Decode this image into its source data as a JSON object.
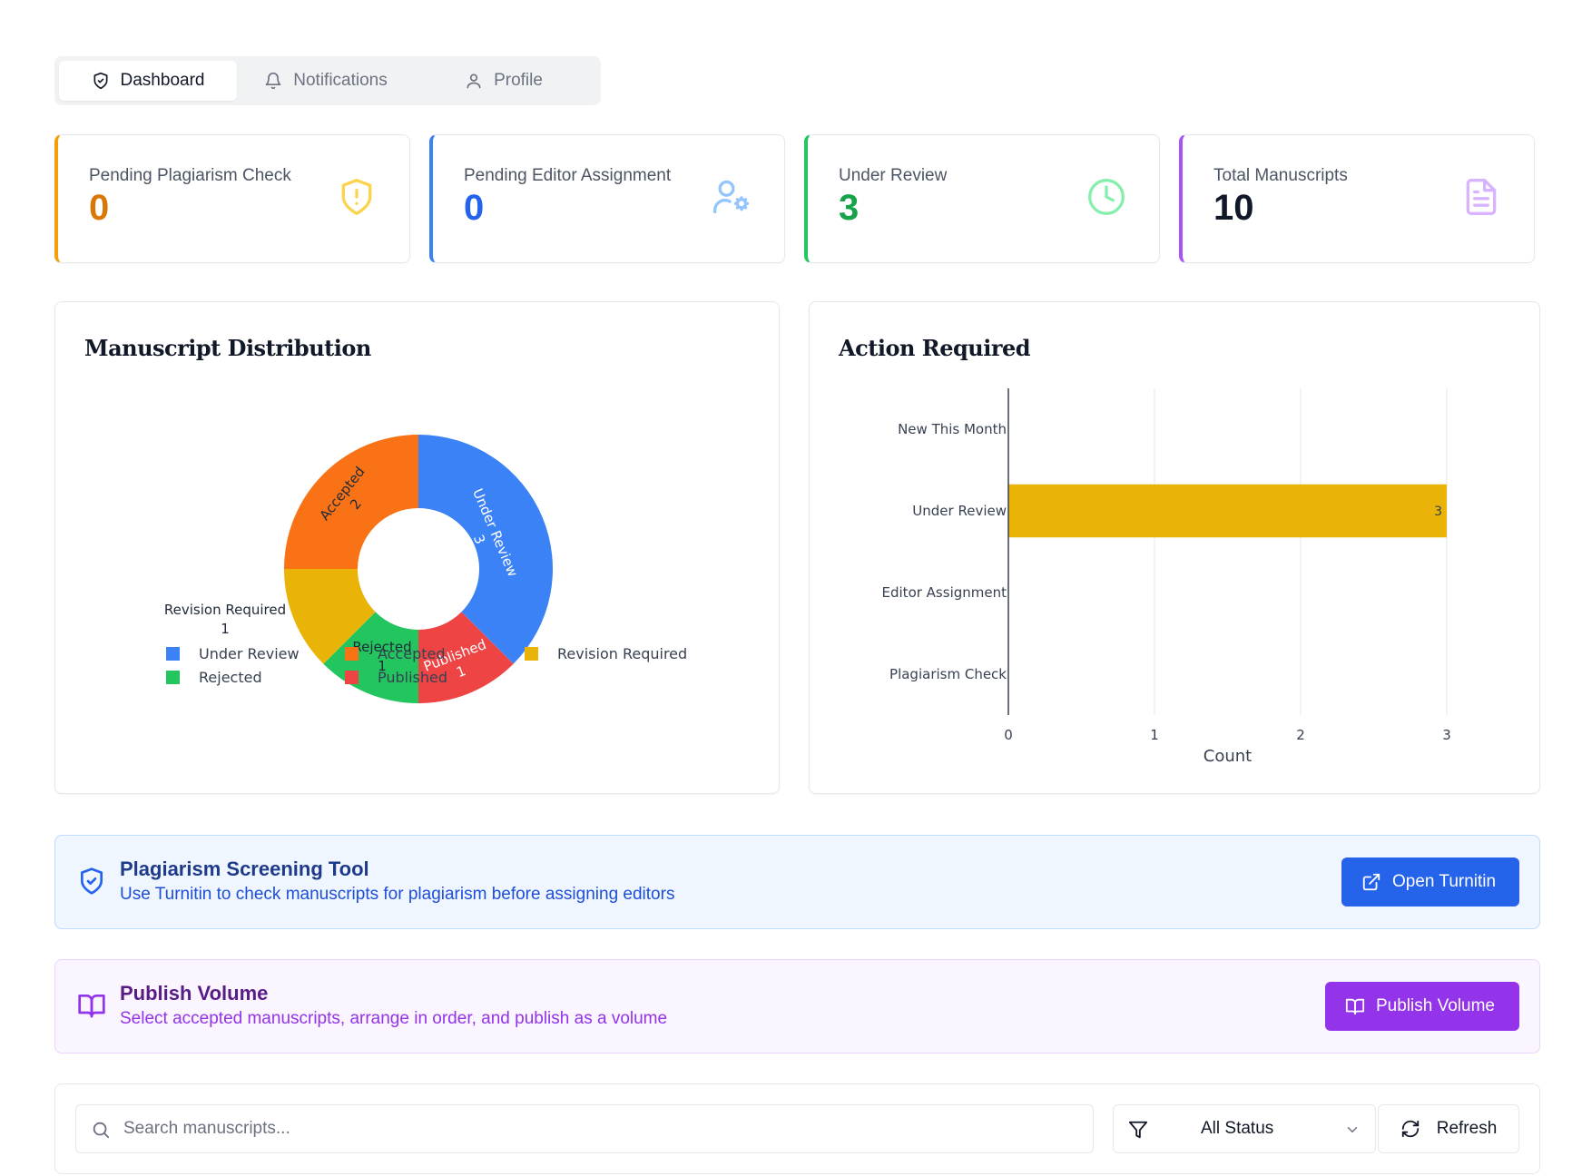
{
  "tabs": [
    {
      "label": "Dashboard",
      "icon": "shield-check-icon",
      "active": true
    },
    {
      "label": "Notifications",
      "icon": "bell-icon",
      "active": false
    },
    {
      "label": "Profile",
      "icon": "user-icon",
      "active": false
    }
  ],
  "stats": [
    {
      "label": "Pending Plagiarism Check",
      "value": "0",
      "color": "#d97706",
      "icon": "shield-alert-icon"
    },
    {
      "label": "Pending Editor Assignment",
      "value": "0",
      "color": "#2563eb",
      "icon": "user-cog-icon"
    },
    {
      "label": "Under Review",
      "value": "3",
      "color": "#16a34a",
      "icon": "clock-icon"
    },
    {
      "label": "Total Manuscripts",
      "value": "10",
      "color": "#9333ea",
      "icon": "file-text-icon"
    }
  ],
  "distribution": {
    "title": "Manuscript Distribution"
  },
  "action": {
    "title": "Action Required"
  },
  "chart_data": [
    {
      "type": "pie",
      "title": "Manuscript Distribution",
      "hole": true,
      "labels": [
        "Under Review",
        "Published",
        "Rejected",
        "Revision Required",
        "Accepted"
      ],
      "values": [
        3,
        1,
        1,
        1,
        2
      ],
      "colors": [
        "#3b82f6",
        "#ef4444",
        "#22c55e",
        "#eab308",
        "#f97316"
      ],
      "legend": [
        "Under Review",
        "Accepted",
        "Revision Required",
        "Rejected",
        "Published"
      ],
      "legend_colors": [
        "#3b82f6",
        "#f97316",
        "#eab308",
        "#22c55e",
        "#ef4444"
      ],
      "legend_position": "bottom"
    },
    {
      "type": "bar",
      "orientation": "horizontal",
      "title": "Action Required",
      "categories": [
        "New This Month",
        "Under Review",
        "Editor Assignment",
        "Plagiarism Check"
      ],
      "values": [
        0,
        3,
        0,
        0
      ],
      "data_labels": [
        "",
        "3",
        "",
        ""
      ],
      "xlabel": "Count",
      "xlim": [
        0,
        3
      ],
      "xticks": [
        "0",
        "1",
        "2",
        "3"
      ],
      "bar_color": "#eab308",
      "grid": true
    }
  ],
  "plagiarism": {
    "title": "Plagiarism Screening Tool",
    "description": "Use Turnitin to check manuscripts for plagiarism before assigning editors",
    "button": "Open Turnitin"
  },
  "publish": {
    "title": "Publish Volume",
    "description": "Select accepted manuscripts, arrange in order, and publish as a volume",
    "button": "Publish Volume"
  },
  "filters": {
    "search_placeholder": "Search manuscripts...",
    "search_value": "",
    "status": "All Status",
    "refresh": "Refresh"
  }
}
